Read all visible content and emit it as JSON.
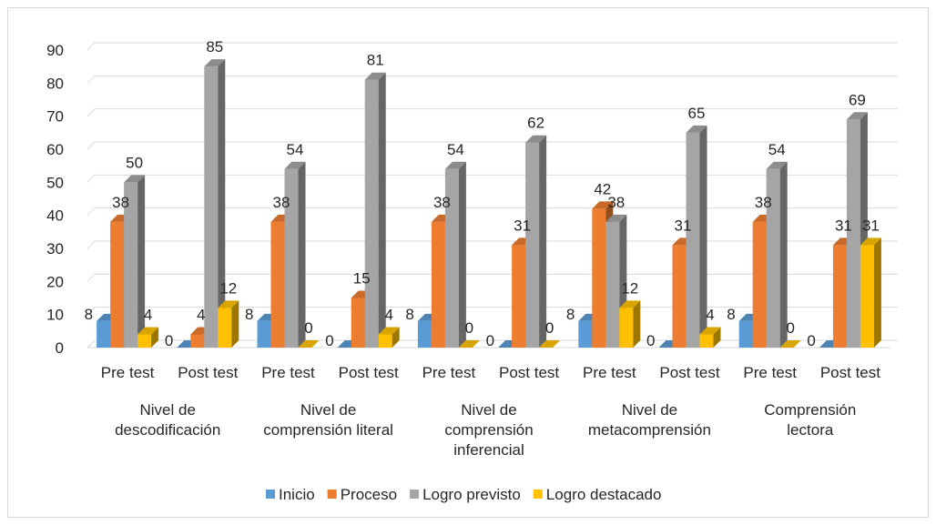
{
  "chart_data": {
    "type": "bar",
    "title": "",
    "xlabel": "",
    "ylabel": "",
    "ylim": [
      0,
      90
    ],
    "yticks": [
      0,
      10,
      20,
      30,
      40,
      50,
      60,
      70,
      80,
      90
    ],
    "grid": true,
    "legend_position": "bottom",
    "groups": [
      {
        "label": [
          "Nivel de",
          "descodificación"
        ],
        "categories": [
          "Pre test",
          "Post test"
        ]
      },
      {
        "label": [
          "Nivel de",
          "comprensión literal"
        ],
        "categories": [
          "Pre test",
          "Post test"
        ]
      },
      {
        "label": [
          "Nivel de",
          "comprensión",
          "inferencial"
        ],
        "categories": [
          "Pre test",
          "Post test"
        ]
      },
      {
        "label": [
          "Nivel de",
          "metacomprensión"
        ],
        "categories": [
          "Pre test",
          "Post test"
        ]
      },
      {
        "label": [
          "Comprensión",
          "lectora"
        ],
        "categories": [
          "Pre test",
          "Post test"
        ]
      }
    ],
    "series": [
      {
        "name": "Inicio",
        "color": "#5b9bd5",
        "values": [
          8,
          0,
          8,
          0,
          8,
          0,
          8,
          0,
          8,
          0
        ]
      },
      {
        "name": "Proceso",
        "color": "#ed7d31",
        "values": [
          38,
          4,
          38,
          15,
          38,
          31,
          42,
          31,
          38,
          31
        ]
      },
      {
        "name": "Logro previsto",
        "color": "#a5a5a5",
        "values": [
          50,
          85,
          54,
          81,
          54,
          62,
          38,
          65,
          54,
          69
        ]
      },
      {
        "name": "Logro destacado",
        "color": "#ffc000",
        "values": [
          4,
          12,
          0,
          4,
          0,
          0,
          12,
          4,
          0,
          31
        ]
      }
    ]
  }
}
